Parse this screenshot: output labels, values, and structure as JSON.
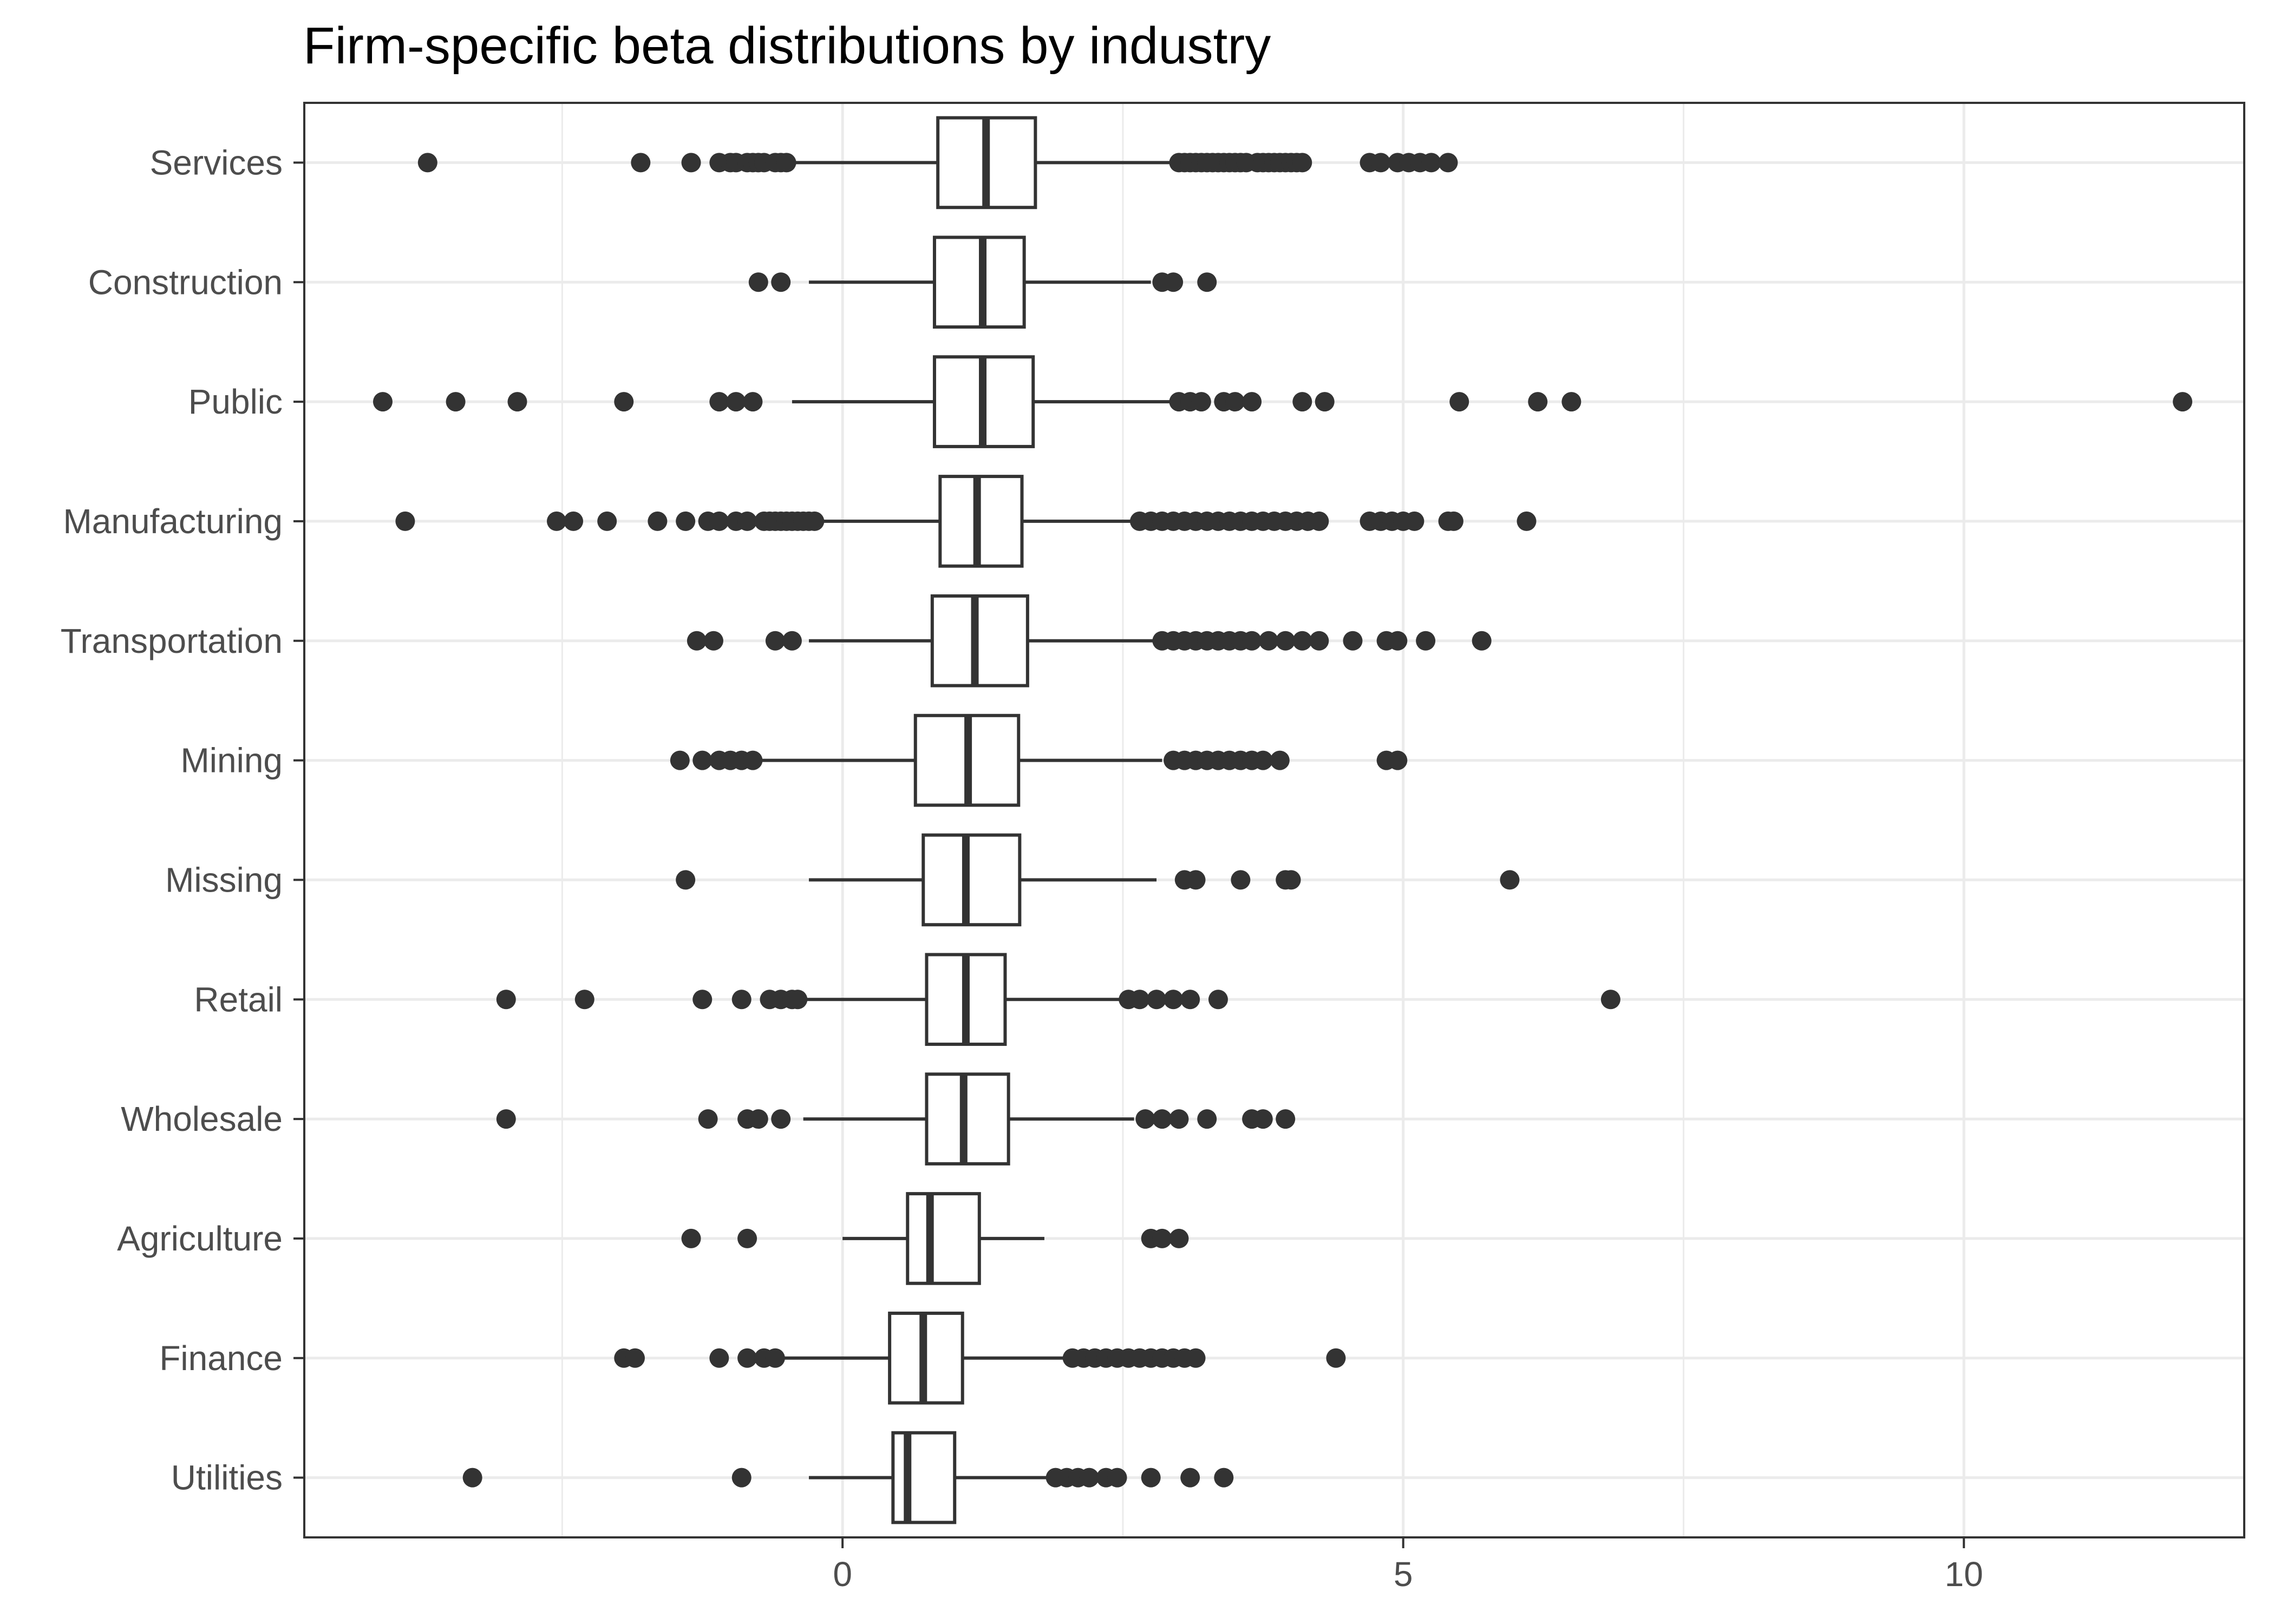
{
  "chart_data": {
    "type": "boxplot",
    "title": "Firm-specific beta distributions by industry",
    "orientation": "horizontal",
    "xlabel": "",
    "ylabel": "",
    "xlim": [
      -4.8,
      12.5
    ],
    "x_ticks": [
      0,
      5,
      10
    ],
    "x_tick_labels": [
      "0",
      "5",
      "10"
    ],
    "grid": true,
    "legend": "none",
    "colors": {
      "box_fill": "#ffffff",
      "line": "#333333",
      "outlier": "#333333",
      "grid": "#ebebeb",
      "panel_border": "#333333"
    },
    "categories": [
      "Services",
      "Construction",
      "Public",
      "Manufacturing",
      "Transportation",
      "Mining",
      "Missing",
      "Retail",
      "Wholesale",
      "Agriculture",
      "Finance",
      "Utilities"
    ],
    "boxes": [
      {
        "category": "Services",
        "whisker_low": -0.45,
        "q1": 0.85,
        "median": 1.28,
        "q3": 1.72,
        "whisker_high": 2.95,
        "outliers": [
          -3.7,
          -1.8,
          -1.35,
          -1.1,
          -1.0,
          -0.95,
          -0.85,
          -0.8,
          -0.75,
          -0.7,
          -0.6,
          -0.55,
          -0.5,
          3.0,
          3.05,
          3.1,
          3.15,
          3.2,
          3.25,
          3.3,
          3.35,
          3.4,
          3.45,
          3.5,
          3.55,
          3.6,
          3.7,
          3.75,
          3.8,
          3.85,
          3.9,
          3.95,
          4.0,
          4.05,
          4.1,
          4.7,
          4.8,
          4.95,
          5.05,
          5.15,
          5.25,
          5.4
        ]
      },
      {
        "category": "Construction",
        "whisker_low": -0.3,
        "q1": 0.82,
        "median": 1.25,
        "q3": 1.62,
        "whisker_high": 2.75,
        "outliers": [
          -0.75,
          -0.55,
          2.85,
          2.95,
          3.25
        ]
      },
      {
        "category": "Public",
        "whisker_low": -0.45,
        "q1": 0.82,
        "median": 1.25,
        "q3": 1.7,
        "whisker_high": 2.95,
        "outliers": [
          -4.1,
          -3.45,
          -2.9,
          -1.95,
          -1.1,
          -0.95,
          -0.8,
          3.0,
          3.1,
          3.2,
          3.4,
          3.5,
          3.65,
          4.1,
          4.3,
          5.5,
          6.2,
          6.5,
          11.95
        ]
      },
      {
        "category": "Manufacturing",
        "whisker_low": -0.2,
        "q1": 0.87,
        "median": 1.2,
        "q3": 1.6,
        "whisker_high": 2.6,
        "outliers": [
          -3.9,
          -2.55,
          -2.4,
          -2.1,
          -1.65,
          -1.4,
          -1.2,
          -1.1,
          -0.95,
          -0.85,
          -0.7,
          -0.65,
          -0.6,
          -0.55,
          -0.5,
          -0.45,
          -0.4,
          -0.35,
          -0.3,
          -0.25,
          2.65,
          2.75,
          2.85,
          2.95,
          3.05,
          3.15,
          3.25,
          3.35,
          3.45,
          3.55,
          3.65,
          3.75,
          3.85,
          3.95,
          4.05,
          4.15,
          4.25,
          4.7,
          4.8,
          4.9,
          5.0,
          5.1,
          5.4,
          5.45,
          6.1
        ]
      },
      {
        "category": "Transportation",
        "whisker_low": -0.3,
        "q1": 0.8,
        "median": 1.18,
        "q3": 1.65,
        "whisker_high": 2.8,
        "outliers": [
          -1.3,
          -1.15,
          -0.6,
          -0.45,
          2.85,
          2.95,
          3.05,
          3.15,
          3.25,
          3.35,
          3.45,
          3.55,
          3.65,
          3.8,
          3.95,
          4.1,
          4.25,
          4.55,
          4.85,
          4.95,
          5.2,
          5.7
        ]
      },
      {
        "category": "Mining",
        "whisker_low": -0.75,
        "q1": 0.65,
        "median": 1.12,
        "q3": 1.57,
        "whisker_high": 2.85,
        "outliers": [
          -1.45,
          -1.25,
          -1.1,
          -1.0,
          -0.9,
          -0.8,
          2.95,
          3.05,
          3.15,
          3.25,
          3.35,
          3.45,
          3.55,
          3.65,
          3.75,
          3.9,
          4.85,
          4.95
        ]
      },
      {
        "category": "Missing",
        "whisker_low": -0.3,
        "q1": 0.72,
        "median": 1.1,
        "q3": 1.58,
        "whisker_high": 2.8,
        "outliers": [
          -1.4,
          3.05,
          3.15,
          3.55,
          3.95,
          4.0,
          5.95
        ]
      },
      {
        "category": "Retail",
        "whisker_low": -0.35,
        "q1": 0.75,
        "median": 1.1,
        "q3": 1.45,
        "whisker_high": 2.5,
        "outliers": [
          -3.0,
          -2.3,
          -1.25,
          -0.9,
          -0.65,
          -0.55,
          -0.45,
          -0.4,
          2.55,
          2.65,
          2.8,
          2.95,
          3.1,
          3.35,
          6.85
        ]
      },
      {
        "category": "Wholesale",
        "whisker_low": -0.35,
        "q1": 0.75,
        "median": 1.08,
        "q3": 1.48,
        "whisker_high": 2.6,
        "outliers": [
          -3.0,
          -1.2,
          -0.85,
          -0.75,
          -0.55,
          2.7,
          2.85,
          3.0,
          3.25,
          3.65,
          3.75,
          3.95
        ]
      },
      {
        "category": "Agriculture",
        "whisker_low": 0.0,
        "q1": 0.58,
        "median": 0.78,
        "q3": 1.22,
        "whisker_high": 1.8,
        "outliers": [
          -1.35,
          -0.85,
          2.75,
          2.85,
          3.0
        ]
      },
      {
        "category": "Finance",
        "whisker_low": -0.55,
        "q1": 0.42,
        "median": 0.72,
        "q3": 1.07,
        "whisker_high": 2.0,
        "outliers": [
          -1.95,
          -1.85,
          -1.1,
          -0.85,
          -0.7,
          -0.6,
          2.05,
          2.15,
          2.25,
          2.35,
          2.45,
          2.55,
          2.65,
          2.75,
          2.85,
          2.95,
          3.05,
          3.15,
          4.4
        ]
      },
      {
        "category": "Utilities",
        "whisker_low": -0.3,
        "q1": 0.45,
        "median": 0.58,
        "q3": 1.0,
        "whisker_high": 1.85,
        "outliers": [
          -3.3,
          -0.9,
          1.9,
          2.0,
          2.1,
          2.2,
          2.35,
          2.45,
          2.75,
          3.1,
          3.4
        ]
      }
    ]
  }
}
